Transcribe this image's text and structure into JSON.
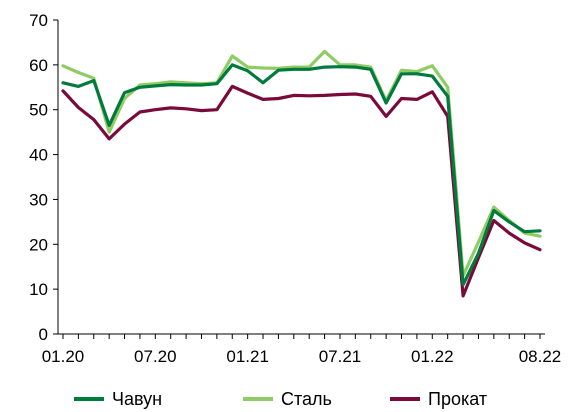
{
  "chart_data": {
    "type": "line",
    "title": "",
    "xlabel": "",
    "ylabel": "",
    "ylim": [
      0,
      70
    ],
    "yticks": [
      0,
      10,
      20,
      30,
      40,
      50,
      60,
      70
    ],
    "grid": false,
    "legend": "bottom",
    "x": [
      "01.20",
      "02.20",
      "03.20",
      "04.20",
      "05.20",
      "06.20",
      "07.20",
      "08.20",
      "09.20",
      "10.20",
      "11.20",
      "12.20",
      "01.21",
      "02.21",
      "03.21",
      "04.21",
      "05.21",
      "06.21",
      "07.21",
      "08.21",
      "09.21",
      "10.21",
      "11.21",
      "12.21",
      "01.22",
      "02.22",
      "03.22",
      "04.22",
      "05.22",
      "06.22",
      "07.22",
      "08.22"
    ],
    "xtick_labels": [
      "01.20",
      "07.20",
      "01.21",
      "07.21",
      "01.22",
      "08.22"
    ],
    "series": [
      {
        "name": "Чавун",
        "color": "#007a3d",
        "values": [
          56,
          55.2,
          56.5,
          46.5,
          53.8,
          55,
          55.3,
          55.6,
          55.5,
          55.5,
          55.8,
          60,
          58.7,
          56,
          58.8,
          59,
          59,
          59.5,
          59.6,
          59.5,
          59,
          51.5,
          58,
          58,
          57.5,
          53,
          11,
          18,
          27.5,
          25,
          22.8,
          23
        ]
      },
      {
        "name": "Сталь",
        "color": "#8fcc63",
        "values": [
          59.8,
          58.3,
          57,
          45,
          52.5,
          55.5,
          55.8,
          56.2,
          56,
          55.8,
          56,
          62,
          59.5,
          59.3,
          59.2,
          59.5,
          59.5,
          63,
          60,
          60,
          59.5,
          52,
          58.8,
          58.5,
          59.8,
          55,
          13,
          20.5,
          28.3,
          25.3,
          22.5,
          21.8
        ]
      },
      {
        "name": "Прокат",
        "color": "#7a0a3a",
        "values": [
          54.2,
          50.5,
          47.8,
          43.5,
          46.8,
          49.5,
          50,
          50.4,
          50.2,
          49.8,
          50,
          55.2,
          53.7,
          52.3,
          52.5,
          53.2,
          53.1,
          53.2,
          53.4,
          53.5,
          53,
          48.5,
          52.5,
          52.3,
          54,
          48.5,
          8.5,
          17,
          25.3,
          22.5,
          20.3,
          18.8
        ]
      }
    ]
  }
}
